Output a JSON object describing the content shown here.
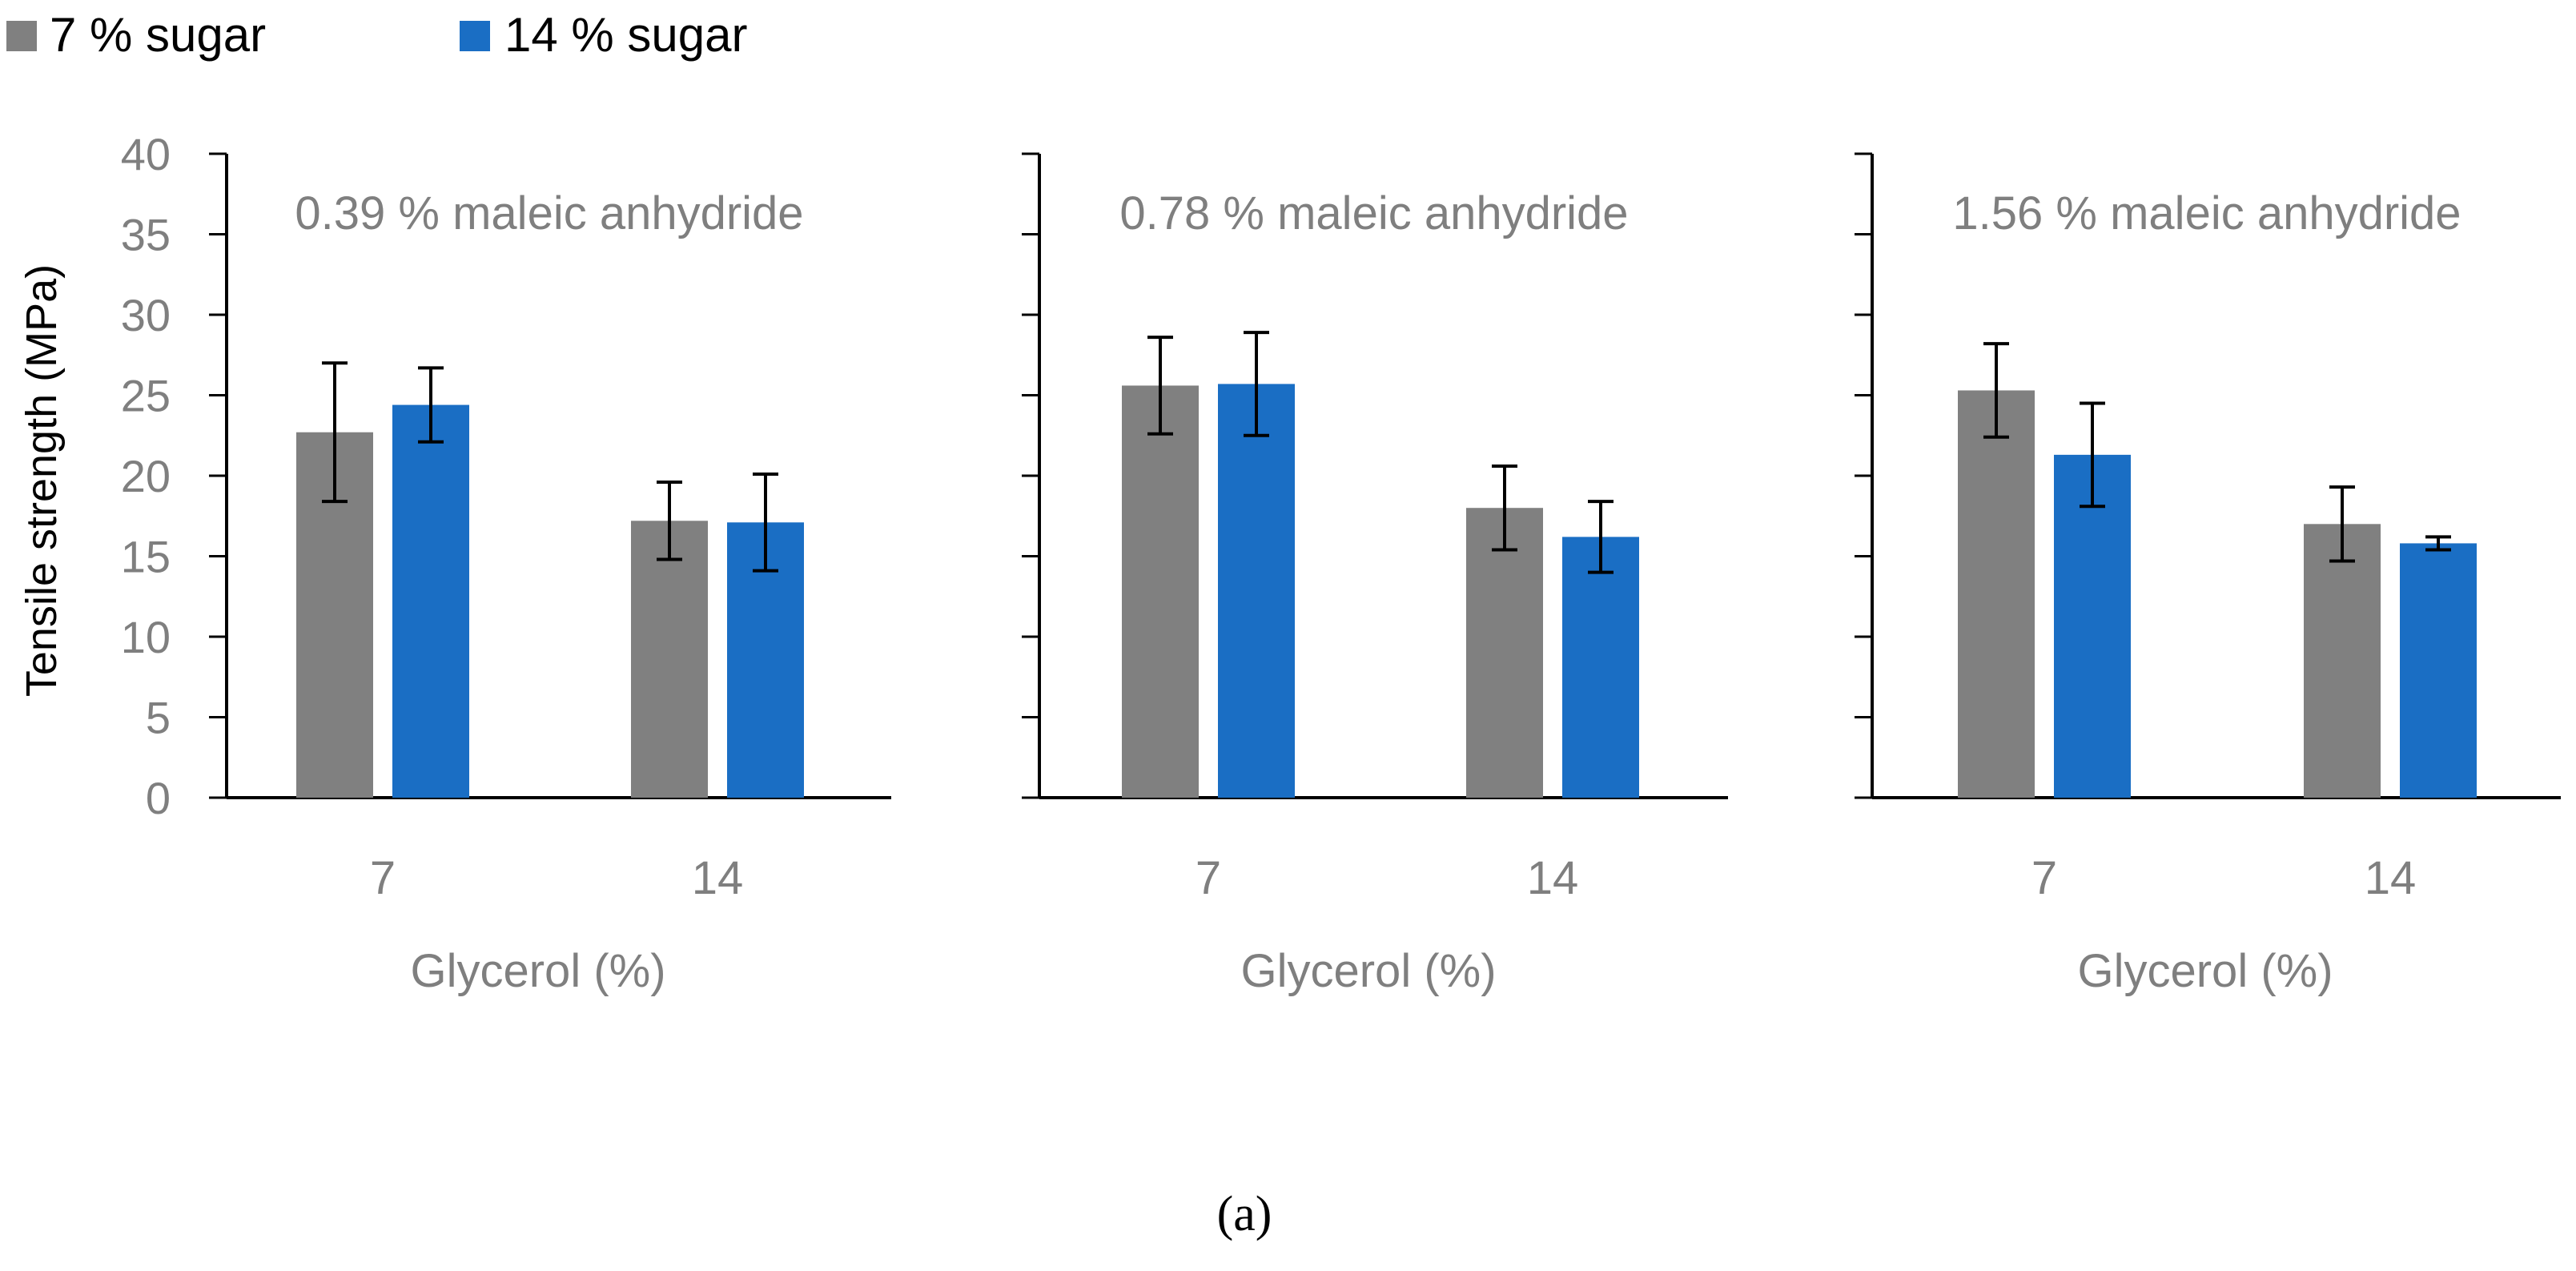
{
  "legend": [
    {
      "label": "7 % sugar",
      "color": "#808080"
    },
    {
      "label": "14 % sugar",
      "color": "#1a6ec4"
    }
  ],
  "y_axis_title": "Tensile strength (MPa)",
  "figure_label": "(a)",
  "colors": {
    "axis": "#000000",
    "tick_text": "#7f7f7f",
    "error_bar": "#000000"
  },
  "chart_data": [
    {
      "type": "bar",
      "title": "0.39 % maleic anhydride",
      "xlabel": "Glycerol (%)",
      "ylabel": "Tensile strength (MPa)",
      "categories": [
        "7",
        "14"
      ],
      "ylim": [
        0,
        40
      ],
      "yticks": [
        0,
        5,
        10,
        15,
        20,
        25,
        30,
        35,
        40
      ],
      "show_ytick_labels": true,
      "series": [
        {
          "name": "7 % sugar",
          "values": [
            22.7,
            17.2
          ],
          "errors": [
            4.3,
            2.4
          ]
        },
        {
          "name": "14 % sugar",
          "values": [
            24.4,
            17.1
          ],
          "errors": [
            2.3,
            3.0
          ]
        }
      ]
    },
    {
      "type": "bar",
      "title": "0.78 % maleic anhydride",
      "xlabel": "Glycerol (%)",
      "ylabel": "",
      "categories": [
        "7",
        "14"
      ],
      "ylim": [
        0,
        40
      ],
      "yticks": [
        0,
        5,
        10,
        15,
        20,
        25,
        30,
        35,
        40
      ],
      "show_ytick_labels": false,
      "series": [
        {
          "name": "7 % sugar",
          "values": [
            25.6,
            18.0
          ],
          "errors": [
            3.0,
            2.6
          ]
        },
        {
          "name": "14 % sugar",
          "values": [
            25.7,
            16.2
          ],
          "errors": [
            3.2,
            2.2
          ]
        }
      ]
    },
    {
      "type": "bar",
      "title": "1.56 % maleic anhydride",
      "xlabel": "Glycerol (%)",
      "ylabel": "",
      "categories": [
        "7",
        "14"
      ],
      "ylim": [
        0,
        40
      ],
      "yticks": [
        0,
        5,
        10,
        15,
        20,
        25,
        30,
        35,
        40
      ],
      "show_ytick_labels": false,
      "series": [
        {
          "name": "7 % sugar",
          "values": [
            25.3,
            17.0
          ],
          "errors": [
            2.9,
            2.3
          ]
        },
        {
          "name": "14 % sugar",
          "values": [
            21.3,
            15.8
          ],
          "errors": [
            3.2,
            0.4
          ]
        }
      ]
    }
  ]
}
